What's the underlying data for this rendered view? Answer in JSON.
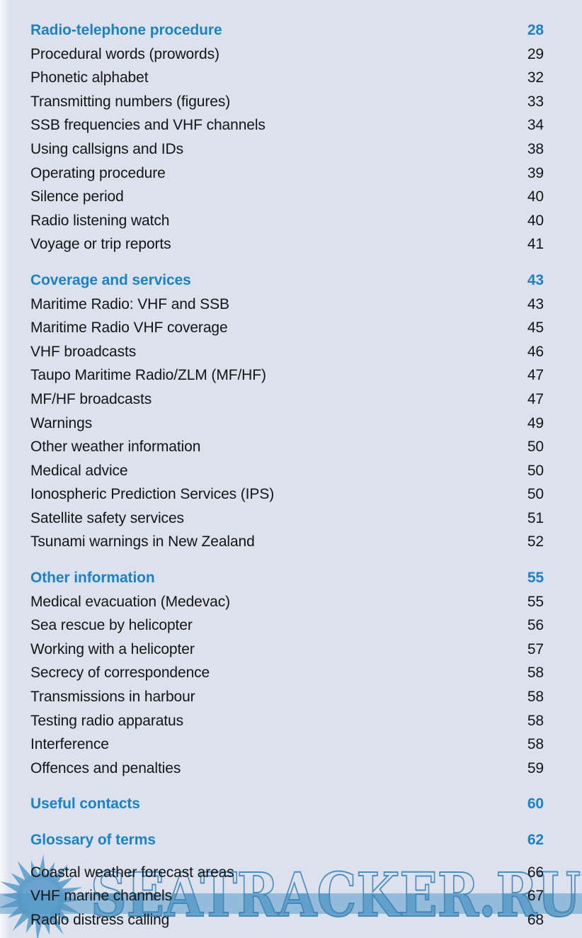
{
  "toc": {
    "sections": [
      {
        "title": "Radio-telephone procedure",
        "page": "28",
        "entries": [
          {
            "label": "Procedural words (prowords)",
            "page": "29"
          },
          {
            "label": "Phonetic alphabet",
            "page": "32"
          },
          {
            "label": "Transmitting numbers (figures)",
            "page": "33"
          },
          {
            "label": "SSB frequencies and VHF channels",
            "page": "34"
          },
          {
            "label": "Using callsigns and IDs",
            "page": "38"
          },
          {
            "label": "Operating procedure",
            "page": "39"
          },
          {
            "label": "Silence period",
            "page": "40"
          },
          {
            "label": "Radio listening watch",
            "page": "40"
          },
          {
            "label": "Voyage or trip reports",
            "page": "41"
          }
        ]
      },
      {
        "title": "Coverage and services",
        "page": "43",
        "entries": [
          {
            "label": "Maritime Radio: VHF and SSB",
            "page": "43"
          },
          {
            "label": "Maritime Radio VHF coverage",
            "page": "45"
          },
          {
            "label": "VHF broadcasts",
            "page": "46"
          },
          {
            "label": "Taupo Maritime Radio/ZLM (MF/HF)",
            "page": "47"
          },
          {
            "label": "MF/HF broadcasts",
            "page": "47"
          },
          {
            "label": "Warnings",
            "page": "49"
          },
          {
            "label": "Other weather information",
            "page": "50"
          },
          {
            "label": "Medical advice",
            "page": "50"
          },
          {
            "label": "Ionospheric Prediction Services (IPS)",
            "page": "50"
          },
          {
            "label": "Satellite safety services",
            "page": "51"
          },
          {
            "label": "Tsunami warnings in New Zealand",
            "page": "52"
          }
        ]
      },
      {
        "title": "Other information",
        "page": "55",
        "entries": [
          {
            "label": "Medical evacuation (Medevac)",
            "page": "55"
          },
          {
            "label": "Sea rescue by helicopter",
            "page": "56"
          },
          {
            "label": "Working with a helicopter",
            "page": "57"
          },
          {
            "label": "Secrecy of correspondence",
            "page": "58"
          },
          {
            "label": "Transmissions in harbour",
            "page": "58"
          },
          {
            "label": "Testing radio apparatus",
            "page": "58"
          },
          {
            "label": "Interference",
            "page": "58"
          },
          {
            "label": "Offences and penalties",
            "page": "59"
          }
        ]
      },
      {
        "title": "Useful contacts",
        "page": "60",
        "entries": []
      },
      {
        "title": "Glossary of terms",
        "page": "62",
        "entries": []
      },
      {
        "title": null,
        "page": null,
        "entries": [
          {
            "label": "Coastal weather forecast areas",
            "page": "66"
          },
          {
            "label": "VHF marine channels",
            "page": "67"
          },
          {
            "label": "Radio distress calling",
            "page": "68"
          }
        ]
      }
    ]
  },
  "watermark": {
    "text": "SEATRACKER.RU"
  },
  "colors": {
    "background": "#dbe2ee",
    "heading_blue": "#1e81c0",
    "body_text": "#141414",
    "watermark_blue": "#5b9dc8",
    "watermark_outline": "#4084b6",
    "watermark_band": "#4e94c4"
  }
}
